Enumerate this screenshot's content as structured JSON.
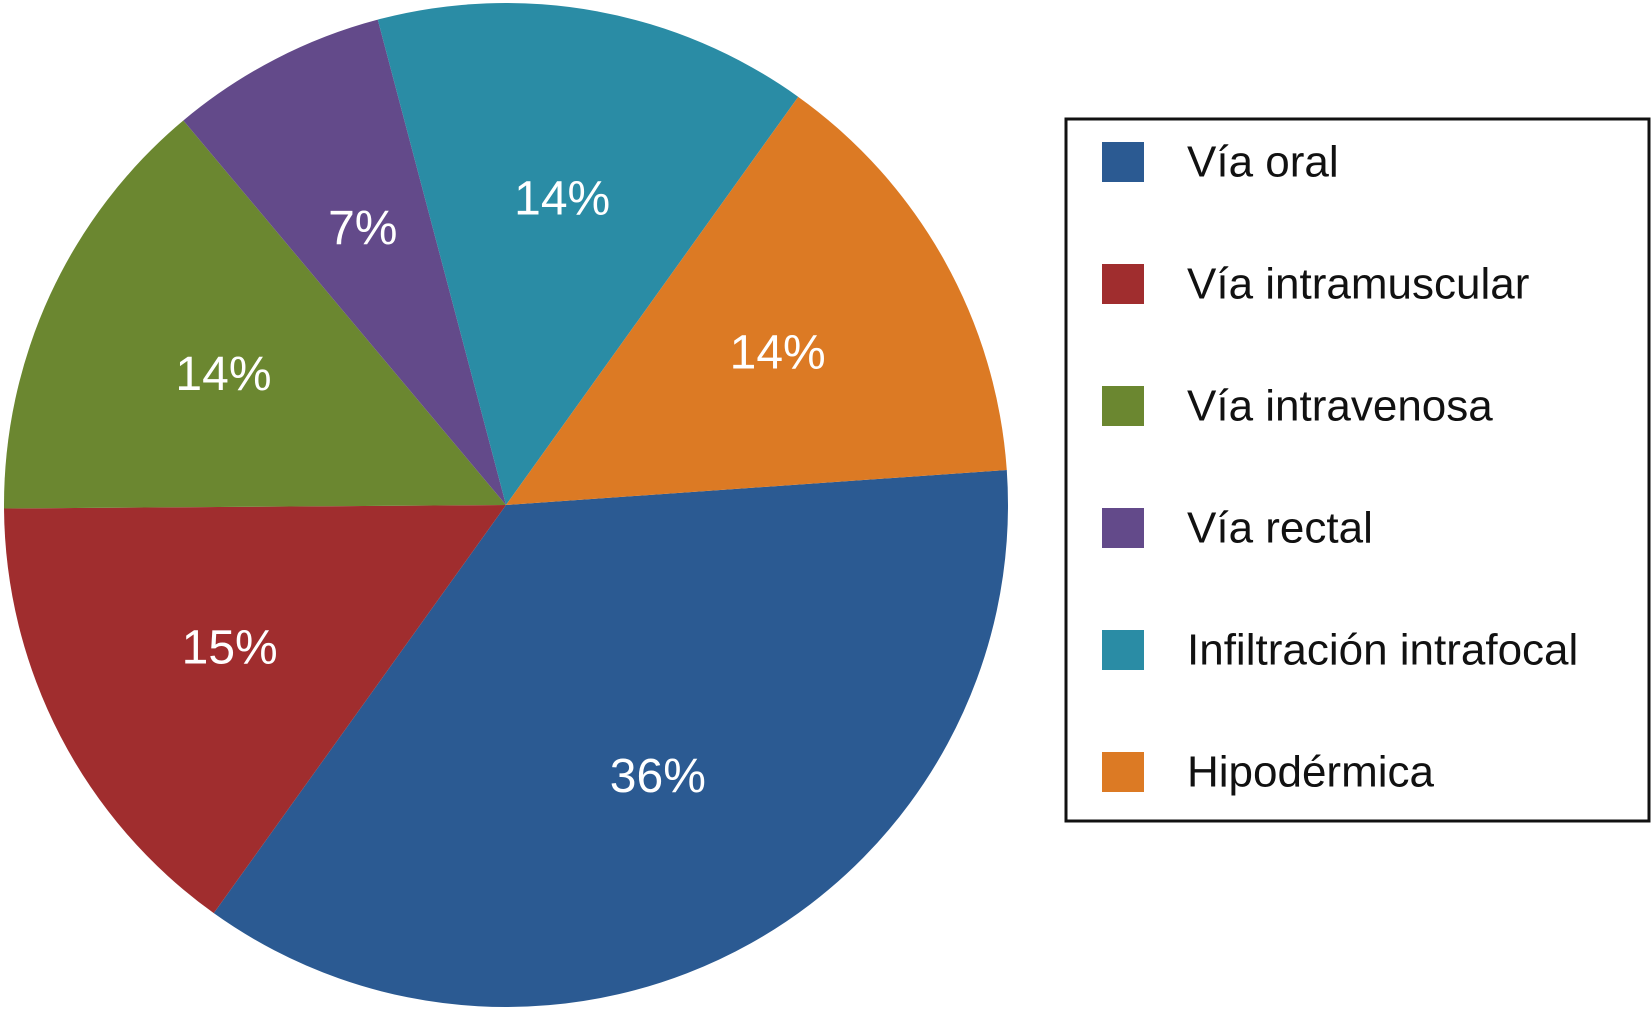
{
  "chart_data": {
    "type": "pie",
    "categories": [
      "Vía oral",
      "Vía intramuscular",
      "Vía intravenosa",
      "Vía rectal",
      "Infiltración intrafocal",
      "Hipodérmica"
    ],
    "values": [
      36,
      15,
      14,
      7,
      14,
      14
    ],
    "value_labels": [
      "36%",
      "15%",
      "14%",
      "7%",
      "14%",
      "14%"
    ],
    "colors": [
      "#2b5a92",
      "#a02d2e",
      "#6b8730",
      "#634a8a",
      "#2a8ca5",
      "#dc7a24"
    ],
    "title": "",
    "legend": {
      "position": "right",
      "bordered": true,
      "entries": [
        "Vía oral",
        "Vía intramuscular",
        "Vía intravenosa",
        "Vía rectal",
        "Infiltración intrafocal",
        "Hipodérmica"
      ]
    }
  }
}
